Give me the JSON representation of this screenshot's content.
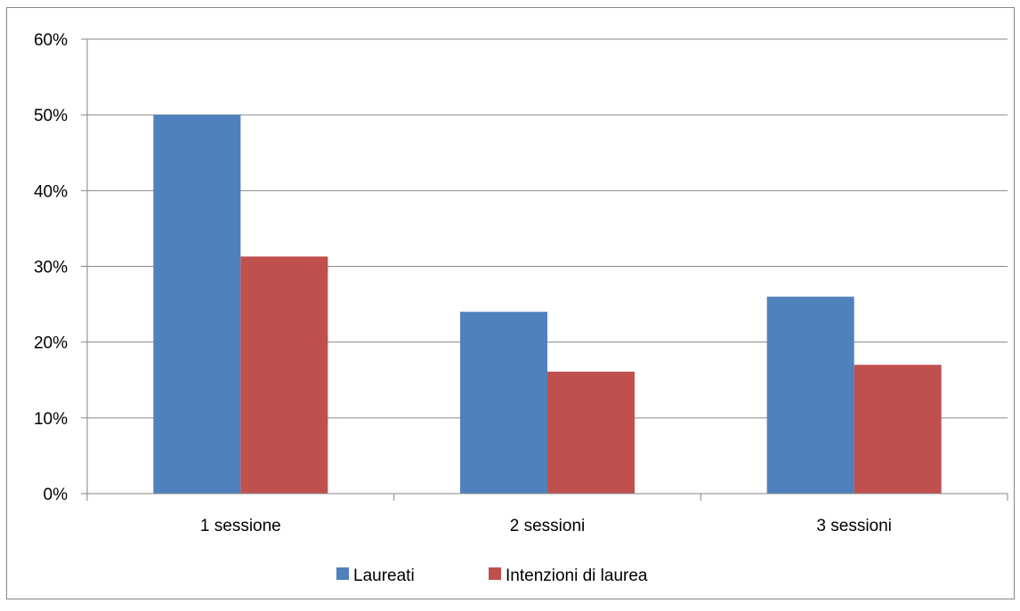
{
  "chart_data": {
    "type": "bar",
    "categories": [
      "1 sessione",
      "2 sessioni",
      "3 sessioni"
    ],
    "series": [
      {
        "name": "Laureati",
        "values": [
          50,
          24,
          26
        ],
        "color": "#4F81BD"
      },
      {
        "name": "Intenzioni di laurea",
        "values": [
          31.3,
          16.1,
          17
        ],
        "color": "#C0504D"
      }
    ],
    "ylim": [
      0,
      60
    ],
    "yticks": [
      "0%",
      "10%",
      "20%",
      "30%",
      "40%",
      "50%",
      "60%"
    ],
    "grid": true,
    "legend_position": "bottom",
    "title": "",
    "xlabel": "",
    "ylabel": ""
  }
}
